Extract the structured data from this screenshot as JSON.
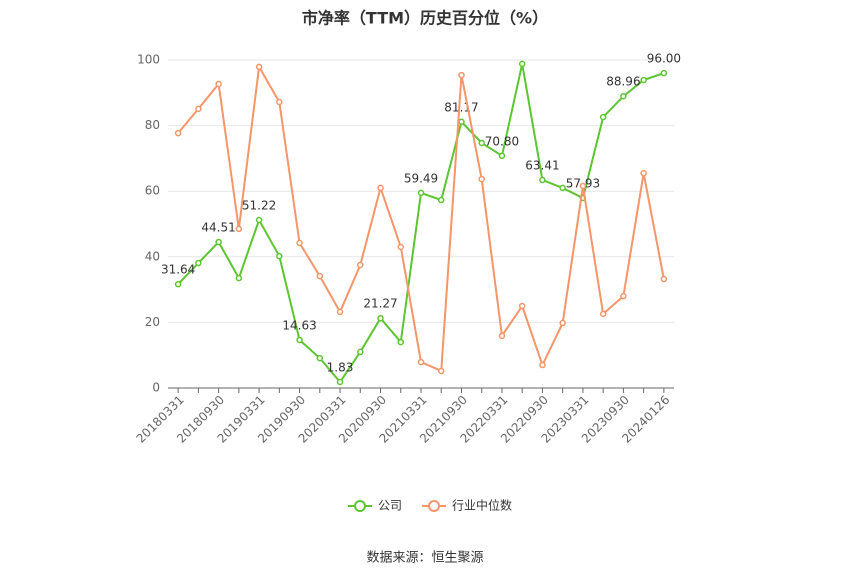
{
  "chart_data": {
    "type": "line",
    "title": "市净率（TTM）历史百分位（%）",
    "categories": [
      "20180331",
      null,
      "20180930",
      null,
      "20190331",
      null,
      "20190930",
      null,
      "20200331",
      null,
      "20200930",
      null,
      "20210331",
      null,
      "20210930",
      null,
      "20220331",
      null,
      "20220930",
      null,
      "20230331",
      null,
      "20230930",
      null,
      "20240126"
    ],
    "series": [
      {
        "name": "公司",
        "color": "#5cc531",
        "values": [
          31.64,
          38.1,
          44.51,
          33.5,
          51.22,
          40.2,
          14.63,
          9.1,
          1.83,
          11.0,
          21.27,
          14.0,
          59.49,
          57.3,
          81.17,
          74.7,
          70.8,
          98.8,
          63.41,
          61.0,
          57.93,
          82.6,
          88.96,
          93.9,
          96
        ],
        "value_labels": [
          "31.64",
          null,
          "44.51",
          null,
          "51.22",
          null,
          "14.63",
          null,
          "1.83",
          null,
          "21.27",
          null,
          "59.49",
          null,
          "81.17",
          null,
          "70.80",
          null,
          "63.41",
          null,
          "57.93",
          null,
          "88.96",
          null,
          "96.00"
        ]
      },
      {
        "name": "行业中位数",
        "color": "#f4956a",
        "values": [
          77.7,
          85.1,
          92.7,
          48.5,
          97.9,
          87.2,
          44.2,
          34.1,
          23.2,
          37.5,
          61.0,
          43.0,
          7.9,
          5.2,
          95.4,
          63.7,
          15.9,
          25.0,
          7.0,
          19.8,
          61.6,
          22.6,
          28.0,
          65.5,
          33.2
        ]
      }
    ],
    "ylim": [
      0,
      100
    ],
    "yticks": [
      0,
      20,
      40,
      60,
      80,
      100
    ],
    "grid": true,
    "source": "数据来源：恒生聚源"
  }
}
